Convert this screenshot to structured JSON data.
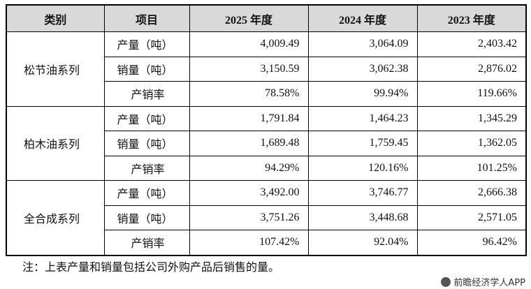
{
  "header": [
    "类别",
    "项目",
    "2025 年度",
    "2024 年度",
    "2023 年度"
  ],
  "groups": [
    {
      "category": "松节油系列",
      "rows": [
        [
          "产量（吨）",
          "4,009.49",
          "3,064.09",
          "2,403.42"
        ],
        [
          "销量（吨）",
          "3,150.59",
          "3,062.38",
          "2,876.02"
        ],
        [
          "产销率",
          "78.58%",
          "99.94%",
          "119.66%"
        ]
      ]
    },
    {
      "category": "柏木油系列",
      "rows": [
        [
          "产量（吨）",
          "1,791.84",
          "1,464.23",
          "1,345.29"
        ],
        [
          "销量（吨）",
          "1,689.48",
          "1,759.45",
          "1,362.05"
        ],
        [
          "产销率",
          "94.29%",
          "120.16%",
          "101.25%"
        ]
      ]
    },
    {
      "category": "全合成系列",
      "rows": [
        [
          "产量（吨）",
          "3,492.00",
          "3,746.77",
          "2,666.38"
        ],
        [
          "销量（吨）",
          "3,751.26",
          "3,448.68",
          "2,571.05"
        ],
        [
          "产销率",
          "107.42%",
          "92.04%",
          "96.42%"
        ]
      ]
    }
  ],
  "note": "注：上表产量和销量包括公司外购产品后销售的量。",
  "source": "前瞻经济学人APP"
}
